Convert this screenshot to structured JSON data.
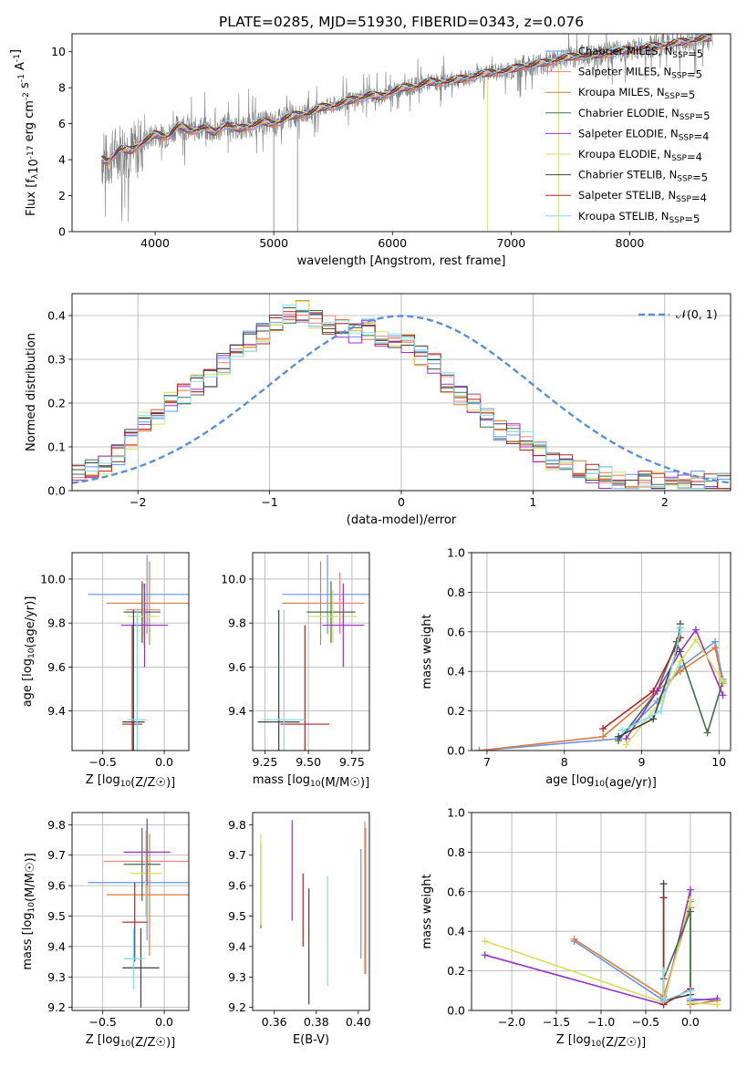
{
  "title": "PLATE=0285, MJD=51930, FIBERID=0343, z=0.076",
  "colors": {
    "chabrier_miles": "#6495ed",
    "salpeter_miles": "#ff7f7f",
    "kroupa_miles": "#e07b39",
    "chabrier_elodie": "#3f6f4f",
    "salpeter_elodie": "#9932cc",
    "kroupa_elodie": "#d4e157",
    "chabrier_stelib": "#404040",
    "salpeter_stelib": "#b22222",
    "kroupa_stelib": "#80deea",
    "data": "#808080",
    "normal": "#5b8fd9"
  },
  "chart_data": [
    {
      "id": "spectrum",
      "type": "line",
      "xlabel": "wavelength [Angstrom, rest frame]",
      "ylabel": "Flux [f_λ10^-17 erg cm^-2 s^-1 A^-1]",
      "xlim": [
        3300,
        8850
      ],
      "ylim": [
        0,
        11
      ],
      "xticks": [
        4000,
        5000,
        6000,
        7000,
        8000
      ],
      "yticks": [
        0,
        2,
        4,
        6,
        8,
        10
      ],
      "grid": false,
      "legend_position": "bottom-right",
      "data_x": [
        3550,
        3600,
        3700,
        3800,
        3900,
        4000,
        4100,
        4200,
        4300,
        4400,
        4500,
        4600,
        4700,
        4800,
        4900,
        5000,
        5100,
        5200,
        5300,
        5400,
        5500,
        5600,
        5700,
        5800,
        5900,
        6000,
        6100,
        6200,
        6300,
        6400,
        6500,
        6600,
        6700,
        6800,
        6900,
        7000,
        7100,
        7200,
        7300,
        7400,
        7500,
        7600,
        7700,
        7800,
        7900,
        8000,
        8100,
        8200,
        8300,
        8400,
        8500,
        8600,
        8700
      ],
      "model_y": [
        4.0,
        3.9,
        4.6,
        4.5,
        5.0,
        5.4,
        5.3,
        5.9,
        5.6,
        5.8,
        5.5,
        6.0,
        5.7,
        5.9,
        6.1,
        6.0,
        6.3,
        6.5,
        6.6,
        6.9,
        7.0,
        7.2,
        7.4,
        7.6,
        7.5,
        7.8,
        8.0,
        8.1,
        8.3,
        8.3,
        8.4,
        8.5,
        8.7,
        8.8,
        8.9,
        9.0,
        9.2,
        9.3,
        9.4,
        9.6,
        9.7,
        9.8,
        9.8,
        9.9,
        10.0,
        10.1,
        10.2,
        10.3,
        10.4,
        10.5,
        10.6,
        10.7,
        10.8
      ],
      "series": [
        {
          "name": "Chabrier MILES, N_SSP=5",
          "color_key": "chabrier_miles"
        },
        {
          "name": "Salpeter MILES, N_SSP=5",
          "color_key": "salpeter_miles"
        },
        {
          "name": "Kroupa MILES, N_SSP=5",
          "color_key": "kroupa_miles"
        },
        {
          "name": "Chabrier ELODIE, N_SSP=5",
          "color_key": "chabrier_elodie"
        },
        {
          "name": "Salpeter ELODIE, N_SSP=4",
          "color_key": "salpeter_elodie"
        },
        {
          "name": "Kroupa ELODIE, N_SSP=4",
          "color_key": "kroupa_elodie"
        },
        {
          "name": "Chabrier STELIB, N_SSP=5",
          "color_key": "chabrier_stelib"
        },
        {
          "name": "Salpeter STELIB, N_SSP=4",
          "color_key": "salpeter_stelib"
        },
        {
          "name": "Kroupa STELIB, N_SSP=5",
          "color_key": "kroupa_stelib"
        }
      ]
    },
    {
      "id": "residuals",
      "type": "area",
      "xlabel": "(data-model)/error",
      "ylabel": "Normed distribution",
      "xlim": [
        -2.5,
        2.5
      ],
      "ylim": [
        0,
        0.45
      ],
      "xticks": [
        -2,
        -1,
        0,
        1,
        2
      ],
      "xtick_labels": [
        "−2",
        "−1",
        "0",
        "1",
        "2"
      ],
      "yticks": [
        0.0,
        0.1,
        0.2,
        0.3,
        0.4
      ],
      "grid": true,
      "legend_position": "top-right",
      "normal_label": "𝒩(0, 1)",
      "bin_width": 0.1,
      "hist_values": [
        0.04,
        0.04,
        0.05,
        0.05,
        0.06,
        0.07,
        0.08,
        0.1,
        0.12,
        0.15,
        0.16,
        0.18,
        0.16,
        0.19,
        0.2,
        0.18,
        0.22,
        0.21,
        0.24,
        0.23,
        0.26,
        0.27,
        0.29,
        0.3,
        0.32,
        0.33,
        0.34,
        0.32,
        0.36,
        0.35,
        0.38,
        0.37,
        0.4,
        0.36,
        0.41,
        0.35,
        0.39,
        0.37,
        0.38,
        0.36,
        0.37,
        0.36,
        0.36,
        0.35,
        0.37,
        0.35,
        0.34,
        0.36,
        0.34,
        0.33,
        0.34,
        0.32,
        0.31,
        0.3,
        0.29,
        0.27,
        0.25,
        0.24,
        0.22,
        0.21,
        0.2,
        0.18,
        0.17,
        0.16,
        0.14,
        0.15,
        0.13,
        0.12,
        0.11,
        0.1,
        0.09,
        0.08,
        0.07,
        0.07,
        0.06,
        0.05,
        0.05,
        0.04,
        0.04,
        0.03,
        0.03,
        0.03,
        0.02,
        0.02,
        0.02,
        0.02,
        0.02,
        0.02,
        0.02,
        0.02,
        0.02,
        0.02,
        0.02,
        0.02,
        0.02,
        0.02,
        0.02,
        0.02,
        0.02,
        0.02
      ]
    },
    {
      "id": "age_vs_Z",
      "type": "scatter",
      "xlabel": "Z [log10(Z/Z☉)]",
      "ylabel": "age  [log10(age/yr)]",
      "xlim": [
        -0.75,
        0.2
      ],
      "ylim": [
        9.22,
        10.12
      ],
      "xticks": [
        -0.5,
        0.0
      ],
      "xtick_labels": [
        "−0.5",
        "0.0"
      ],
      "yticks": [
        9.4,
        9.6,
        9.8,
        10.0
      ],
      "grid": true,
      "points": [
        {
          "x": -0.14,
          "y": 9.93,
          "xerr": 0.48,
          "yerr": 0.18,
          "color_key": "chabrier_miles"
        },
        {
          "x": -0.12,
          "y": 9.89,
          "xerr": 0.35,
          "yerr": 0.19,
          "color_key": "kroupa_miles"
        },
        {
          "x": -0.17,
          "y": 9.86,
          "xerr": 0.14,
          "yerr": 0.12,
          "color_key": "salpeter_miles"
        },
        {
          "x": -0.18,
          "y": 9.85,
          "xerr": 0.15,
          "yerr": 0.14,
          "color_key": "chabrier_elodie"
        },
        {
          "x": -0.17,
          "y": 9.83,
          "xerr": 0.13,
          "yerr": 0.13,
          "color_key": "kroupa_elodie"
        },
        {
          "x": -0.16,
          "y": 9.79,
          "xerr": 0.19,
          "yerr": 0.19,
          "color_key": "salpeter_elodie"
        },
        {
          "x": -0.25,
          "y": 9.35,
          "xerr": 0.09,
          "yerr": 0.51,
          "color_key": "chabrier_stelib"
        },
        {
          "x": -0.26,
          "y": 9.34,
          "xerr": 0.08,
          "yerr": 0.45,
          "color_key": "salpeter_stelib"
        },
        {
          "x": -0.22,
          "y": 9.36,
          "xerr": 0.08,
          "yerr": 0.5,
          "color_key": "kroupa_stelib"
        }
      ]
    },
    {
      "id": "age_vs_mass",
      "type": "scatter",
      "xlabel": "mass [log10(M/M☉)]",
      "ylabel": "",
      "xlim": [
        9.18,
        9.85
      ],
      "ylim": [
        9.22,
        10.12
      ],
      "xticks": [
        9.25,
        9.5,
        9.75
      ],
      "xtick_labels": [
        "9.25",
        "9.50",
        "9.75"
      ],
      "yticks": [
        9.4,
        9.6,
        9.8,
        10.0
      ],
      "grid": true,
      "points": [
        {
          "x": 9.61,
          "y": 9.93,
          "xerr": 0.26,
          "yerr": 0.18,
          "color_key": "chabrier_miles"
        },
        {
          "x": 9.57,
          "y": 9.89,
          "xerr": 0.22,
          "yerr": 0.19,
          "color_key": "kroupa_miles"
        },
        {
          "x": 9.68,
          "y": 9.89,
          "xerr": 0.14,
          "yerr": 0.14,
          "color_key": "salpeter_miles"
        },
        {
          "x": 9.63,
          "y": 9.85,
          "xerr": 0.14,
          "yerr": 0.14,
          "color_key": "chabrier_elodie"
        },
        {
          "x": 9.64,
          "y": 9.83,
          "xerr": 0.14,
          "yerr": 0.12,
          "color_key": "kroupa_elodie"
        },
        {
          "x": 9.7,
          "y": 9.79,
          "xerr": 0.12,
          "yerr": 0.19,
          "color_key": "salpeter_elodie"
        },
        {
          "x": 9.33,
          "y": 9.35,
          "xerr": 0.12,
          "yerr": 0.51,
          "color_key": "chabrier_stelib"
        },
        {
          "x": 9.48,
          "y": 9.34,
          "xerr": 0.14,
          "yerr": 0.45,
          "color_key": "salpeter_stelib"
        },
        {
          "x": 9.36,
          "y": 9.36,
          "xerr": 0.12,
          "yerr": 0.5,
          "color_key": "kroupa_stelib"
        }
      ]
    },
    {
      "id": "weight_vs_age",
      "type": "line",
      "xlabel": "age  [log10(age/yr)]",
      "ylabel": "mass weight",
      "xlim": [
        6.8,
        10.15
      ],
      "ylim": [
        0,
        1
      ],
      "xticks": [
        7,
        8,
        9,
        10
      ],
      "yticks": [
        0.0,
        0.2,
        0.4,
        0.6,
        0.8,
        1.0
      ],
      "grid": true,
      "series": [
        {
          "color_key": "chabrier_miles",
          "x": [
            6.9,
            8.7,
            9.2,
            9.5,
            9.95,
            10.05
          ],
          "y": [
            0.0,
            0.06,
            0.25,
            0.42,
            0.55,
            0.36
          ]
        },
        {
          "color_key": "kroupa_miles",
          "x": [
            6.9,
            8.5,
            9.2,
            9.5,
            9.95,
            10.05
          ],
          "y": [
            0.0,
            0.07,
            0.3,
            0.4,
            0.52,
            0.34
          ]
        },
        {
          "color_key": "chabrier_elodie",
          "x": [
            8.7,
            9.2,
            9.45,
            9.85,
            10.05
          ],
          "y": [
            0.05,
            0.3,
            0.55,
            0.09,
            0.35
          ]
        },
        {
          "color_key": "salpeter_elodie",
          "x": [
            8.8,
            9.2,
            9.5,
            9.7,
            10.05
          ],
          "y": [
            0.06,
            0.3,
            0.5,
            0.61,
            0.28
          ]
        },
        {
          "color_key": "kroupa_elodie",
          "x": [
            8.8,
            9.25,
            9.5,
            9.7,
            10.05
          ],
          "y": [
            0.03,
            0.25,
            0.45,
            0.56,
            0.35
          ]
        },
        {
          "color_key": "chabrier_stelib",
          "x": [
            8.7,
            9.15,
            9.45,
            9.5
          ],
          "y": [
            0.07,
            0.16,
            0.5,
            0.64
          ]
        },
        {
          "color_key": "salpeter_stelib",
          "x": [
            8.5,
            9.15,
            9.5,
            9.5
          ],
          "y": [
            0.11,
            0.3,
            0.57,
            0.62
          ]
        },
        {
          "color_key": "kroupa_stelib",
          "x": [
            8.75,
            9.25,
            9.5,
            9.5
          ],
          "y": [
            0.1,
            0.2,
            0.6,
            0.62
          ]
        }
      ]
    },
    {
      "id": "mass_vs_Z",
      "type": "scatter",
      "xlabel": "Z [log10(Z/Z☉)]",
      "ylabel": "mass [log10(M/M☉)]",
      "xlim": [
        -0.75,
        0.2
      ],
      "ylim": [
        9.19,
        9.84
      ],
      "xticks": [
        -0.5,
        0.0
      ],
      "xtick_labels": [
        "−0.5",
        "0.0"
      ],
      "yticks": [
        9.2,
        9.3,
        9.4,
        9.5,
        9.6,
        9.7,
        9.8
      ],
      "grid": true,
      "points": [
        {
          "x": -0.14,
          "y": 9.61,
          "xerr": 0.48,
          "yerr": 0.19,
          "color_key": "chabrier_miles"
        },
        {
          "x": -0.12,
          "y": 9.57,
          "xerr": 0.35,
          "yerr": 0.2,
          "color_key": "kroupa_miles"
        },
        {
          "x": -0.14,
          "y": 9.68,
          "xerr": 0.35,
          "yerr": 0.1,
          "color_key": "salpeter_miles"
        },
        {
          "x": -0.18,
          "y": 9.67,
          "xerr": 0.15,
          "yerr": 0.12,
          "color_key": "chabrier_elodie"
        },
        {
          "x": -0.15,
          "y": 9.64,
          "xerr": 0.13,
          "yerr": 0.14,
          "color_key": "kroupa_elodie"
        },
        {
          "x": -0.14,
          "y": 9.71,
          "xerr": 0.19,
          "yerr": 0.11,
          "color_key": "salpeter_elodie"
        },
        {
          "x": -0.19,
          "y": 9.33,
          "xerr": 0.15,
          "yerr": 0.13,
          "color_key": "chabrier_stelib"
        },
        {
          "x": -0.24,
          "y": 9.48,
          "xerr": 0.1,
          "yerr": 0.13,
          "color_key": "salpeter_stelib"
        },
        {
          "x": -0.25,
          "y": 9.36,
          "xerr": 0.08,
          "yerr": 0.1,
          "color_key": "kroupa_stelib"
        }
      ]
    },
    {
      "id": "mass_vs_ebv",
      "type": "scatter",
      "xlabel": "E(B-V)",
      "ylabel": "",
      "xlim": [
        0.3497,
        0.4053
      ],
      "ylim": [
        9.19,
        9.84
      ],
      "xticks": [
        0.36,
        0.38,
        0.4
      ],
      "xtick_labels": [
        "0.36",
        "0.38",
        "0.40"
      ],
      "yticks": [
        9.2,
        9.3,
        9.4,
        9.5,
        9.6,
        9.7,
        9.8
      ],
      "grid": false,
      "points": [
        {
          "x": 0.3536,
          "y": 9.6,
          "xerr": 0,
          "yerr": 0.14,
          "color_key": "chabrier_elodie"
        },
        {
          "x": 0.3536,
          "y": 9.62,
          "xerr": 0,
          "yerr": 0.15,
          "color_key": "kroupa_elodie"
        },
        {
          "x": 0.3685,
          "y": 9.65,
          "xerr": 0,
          "yerr": 0.165,
          "color_key": "salpeter_elodie"
        },
        {
          "x": 0.3737,
          "y": 9.52,
          "xerr": 0,
          "yerr": 0.12,
          "color_key": "salpeter_stelib"
        },
        {
          "x": 0.3765,
          "y": 9.4,
          "xerr": 0,
          "yerr": 0.19,
          "color_key": "chabrier_stelib"
        },
        {
          "x": 0.3854,
          "y": 9.45,
          "xerr": 0,
          "yerr": 0.18,
          "color_key": "kroupa_stelib"
        },
        {
          "x": 0.4013,
          "y": 9.54,
          "xerr": 0,
          "yerr": 0.18,
          "color_key": "chabrier_miles"
        },
        {
          "x": 0.4031,
          "y": 9.56,
          "xerr": 0,
          "yerr": 0.25,
          "color_key": "salpeter_miles"
        },
        {
          "x": 0.4035,
          "y": 9.55,
          "xerr": 0,
          "yerr": 0.24,
          "color_key": "kroupa_miles"
        }
      ]
    },
    {
      "id": "weight_vs_Z",
      "type": "line",
      "xlabel": "Z [log10(Z/Z☉)]",
      "ylabel": "mass weight",
      "xlim": [
        -2.45,
        0.45
      ],
      "ylim": [
        0,
        1
      ],
      "xticks": [
        -2.0,
        -1.5,
        -1.0,
        -0.5,
        0.0
      ],
      "xtick_labels": [
        "−2.0",
        "−1.5",
        "−1.0",
        "−0.5",
        "0.0"
      ],
      "yticks": [
        0.0,
        0.2,
        0.4,
        0.6,
        0.8,
        1.0
      ],
      "grid": true,
      "series": [
        {
          "color_key": "chabrier_miles",
          "x": [
            -1.3,
            -0.3,
            0.0,
            0.0,
            0.3
          ],
          "y": [
            0.35,
            0.05,
            0.55,
            0.06,
            0.05
          ]
        },
        {
          "color_key": "kroupa_miles",
          "x": [
            -1.3,
            -0.3,
            0.0,
            0.0,
            0.3
          ],
          "y": [
            0.36,
            0.07,
            0.52,
            0.03,
            0.05
          ]
        },
        {
          "color_key": "salpeter_elodie",
          "x": [
            -2.3,
            -0.3,
            0.0,
            0.0,
            0.3
          ],
          "y": [
            0.28,
            0.03,
            0.61,
            0.05,
            0.06
          ]
        },
        {
          "color_key": "kroupa_elodie",
          "x": [
            -2.3,
            -0.3,
            0.0,
            0.0,
            0.3
          ],
          "y": [
            0.35,
            0.04,
            0.56,
            0.04,
            0.03
          ]
        },
        {
          "color_key": "chabrier_elodie",
          "x": [
            -0.3,
            0.0,
            0.0
          ],
          "y": [
            0.16,
            0.5,
            0.1
          ]
        },
        {
          "color_key": "chabrier_stelib",
          "x": [
            -0.3,
            -0.3,
            0.0,
            0.0
          ],
          "y": [
            0.64,
            0.05,
            0.08,
            0.1
          ]
        },
        {
          "color_key": "salpeter_stelib",
          "x": [
            -0.3,
            -0.3,
            0.0,
            0.0
          ],
          "y": [
            0.57,
            0.03,
            0.11,
            0.1
          ]
        },
        {
          "color_key": "kroupa_stelib",
          "x": [
            -0.3,
            -0.3,
            0.0,
            0.0
          ],
          "y": [
            0.2,
            0.05,
            0.1,
            0.06
          ]
        }
      ]
    }
  ]
}
